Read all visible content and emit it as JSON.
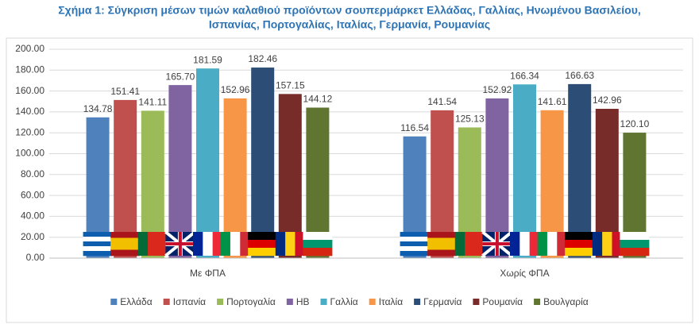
{
  "chart_data": {
    "type": "bar",
    "title": "Σχήμα 1: Σύγκριση μέσων τιμών καλαθιού προϊόντων σουπερμάρκετ Ελλάδας, Γαλλίας, Ηνωμένου Βασιλείου, Ισπανίας, Πορτογαλίας, Ιταλίας, Γερμανία, Ρουμανίας",
    "categories": [
      "Με ΦΠΑ",
      "Χωρίς ΦΠΑ"
    ],
    "series": [
      {
        "name": "Ελλάδα",
        "color": "#4f81bd",
        "values": [
          134.78,
          116.54
        ],
        "value_labels": [
          "134.78",
          "116.54"
        ]
      },
      {
        "name": "Ισπανία",
        "color": "#c0504d",
        "values": [
          151.41,
          141.54
        ],
        "value_labels": [
          "151.41",
          "141.54"
        ]
      },
      {
        "name": "Πορτογαλία",
        "color": "#9bbb59",
        "values": [
          141.11,
          125.13
        ],
        "value_labels": [
          "141.11",
          "125.13"
        ]
      },
      {
        "name": "ΗΒ",
        "color": "#8064a2",
        "values": [
          165.7,
          152.92
        ],
        "value_labels": [
          "165.70",
          "152.92"
        ]
      },
      {
        "name": "Γαλλία",
        "color": "#4bacc6",
        "values": [
          181.59,
          166.34
        ],
        "value_labels": [
          "181.59",
          "166.34"
        ]
      },
      {
        "name": "Ιταλία",
        "color": "#f79646",
        "values": [
          152.96,
          141.61
        ],
        "value_labels": [
          "152.96",
          "141.61"
        ]
      },
      {
        "name": "Γερμανία",
        "color": "#2c4d75",
        "values": [
          182.46,
          166.63
        ],
        "value_labels": [
          "182.46",
          "166.63"
        ]
      },
      {
        "name": "Ρουμανία",
        "color": "#772c2a",
        "values": [
          157.15,
          142.96
        ],
        "value_labels": [
          "157.15",
          "142.96"
        ]
      },
      {
        "name": "Βουλγαρία",
        "color": "#5f7530",
        "values": [
          144.12,
          120.1
        ],
        "value_labels": [
          "144.12",
          "120.10"
        ]
      }
    ],
    "ylim": [
      0,
      200
    ],
    "yticks": [
      {
        "value": 0,
        "label": "0.00"
      },
      {
        "value": 20,
        "label": "20.00"
      },
      {
        "value": 40,
        "label": "40.00"
      },
      {
        "value": 60,
        "label": "60.00"
      },
      {
        "value": 80,
        "label": "80.00"
      },
      {
        "value": 100,
        "label": "100.00"
      },
      {
        "value": 120,
        "label": "120.00"
      },
      {
        "value": 140,
        "label": "140.00"
      },
      {
        "value": 160,
        "label": "160.00"
      },
      {
        "value": 180,
        "label": "180.00"
      },
      {
        "value": 200,
        "label": "200.00"
      }
    ],
    "grid": true,
    "legend": "bottom"
  }
}
